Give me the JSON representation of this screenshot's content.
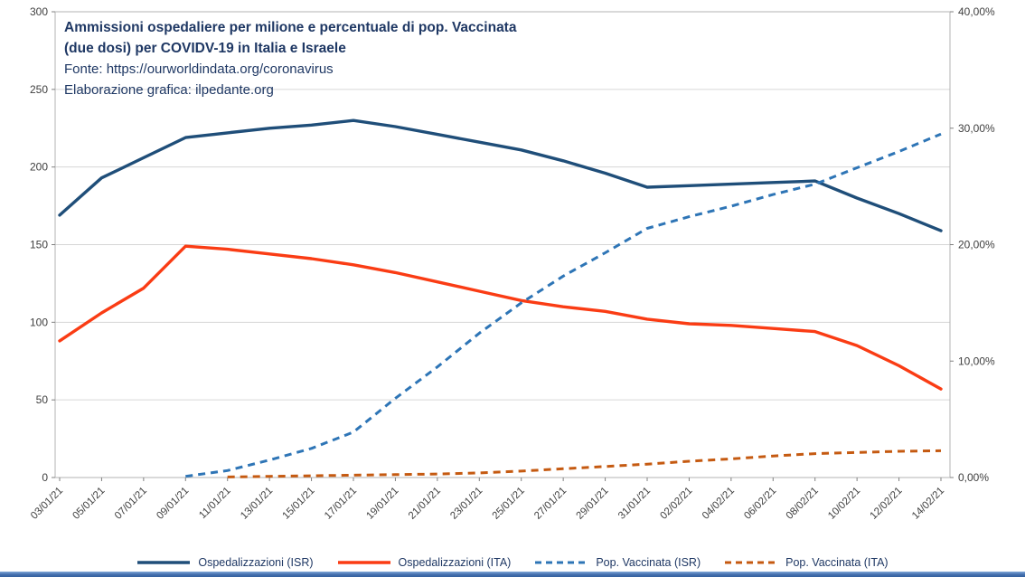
{
  "header": {
    "title_lines": [
      "Ammissioni ospedaliere per milione e percentuale di pop. Vaccinata",
      "(due dosi) per COVIDV-19 in Italia e Israele"
    ],
    "source_lines": [
      "Fonte: https://ourworldindata.org/coronavirus",
      "Elaborazione grafica: ilpedante.org"
    ]
  },
  "chart_data": {
    "type": "line",
    "categories": [
      "03/01/21",
      "05/01/21",
      "07/01/21",
      "09/01/21",
      "11/01/21",
      "13/01/21",
      "15/01/21",
      "17/01/21",
      "19/01/21",
      "21/01/21",
      "23/01/21",
      "25/01/21",
      "27/01/21",
      "29/01/21",
      "31/01/21",
      "02/02/21",
      "04/02/21",
      "06/02/21",
      "08/02/21",
      "10/02/21",
      "12/02/21",
      "14/02/21"
    ],
    "left_axis": {
      "min": 0,
      "max": 300,
      "step": 50,
      "label_values": [
        300,
        250,
        200,
        150,
        100,
        50,
        0
      ]
    },
    "right_axis": {
      "min": 0,
      "max": 40,
      "step": 10,
      "labels": [
        "40,00%",
        "30,00%",
        "20,00%",
        "10,00%",
        "0,00%"
      ]
    },
    "grid": "horizontal",
    "legend_position": "bottom",
    "series": [
      {
        "name": "Ospedalizzazioni (ISR)",
        "axis": "left",
        "line": "solid",
        "color": "#1f4e79",
        "values": [
          169,
          193,
          206,
          219,
          222,
          225,
          227,
          230,
          226,
          221,
          216,
          211,
          204,
          196,
          187,
          188,
          189,
          190,
          191,
          180,
          170,
          159
        ]
      },
      {
        "name": "Ospedalizzazioni (ITA)",
        "axis": "left",
        "line": "solid",
        "color": "#fa3c14",
        "values": [
          88,
          106,
          122,
          149,
          147,
          144,
          141,
          137,
          132,
          126,
          120,
          114,
          110,
          107,
          102,
          99,
          98,
          96,
          94,
          85,
          72,
          57
        ]
      },
      {
        "name": "Pop. Vaccinata (ISR)",
        "axis": "right",
        "line": "dashed",
        "color": "#2e75b6",
        "values": [
          null,
          null,
          null,
          0.1,
          0.6,
          1.5,
          2.5,
          3.9,
          6.8,
          9.5,
          12.4,
          15.0,
          17.3,
          19.3,
          21.4,
          22.4,
          23.3,
          24.3,
          25.2,
          26.6,
          28.0,
          29.5
        ]
      },
      {
        "name": "Pop. Vaccinata (ITA)",
        "axis": "right",
        "line": "dashed",
        "color": "#c55a11",
        "values": [
          null,
          null,
          null,
          null,
          0.05,
          0.1,
          0.15,
          0.2,
          0.25,
          0.3,
          0.4,
          0.55,
          0.75,
          0.95,
          1.15,
          1.4,
          1.6,
          1.85,
          2.05,
          2.15,
          2.25,
          2.3
        ]
      }
    ]
  }
}
